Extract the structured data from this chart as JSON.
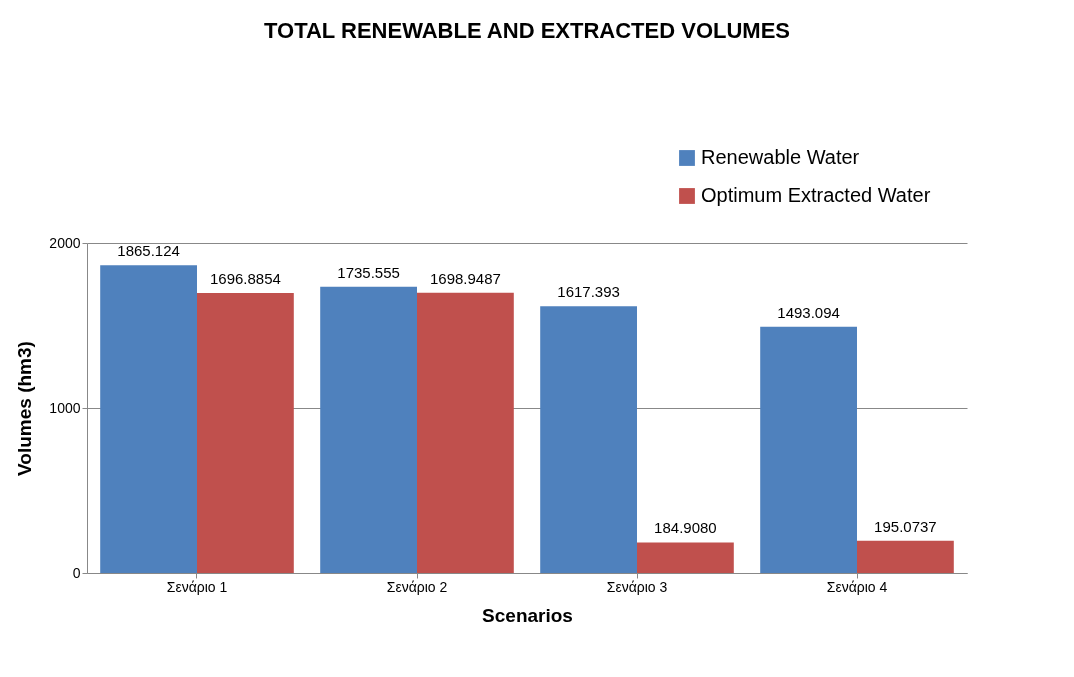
{
  "chart_data": {
    "type": "bar",
    "title": "TOTAL RENEWABLE AND EXTRACTED VOLUMES",
    "xlabel": "Scenarios",
    "ylabel": "Volumes (hm3)",
    "categories": [
      "Σενάριο 1",
      "Σενάριο 2",
      "Σενάριο 3",
      "Σενάριο 4"
    ],
    "series": [
      {
        "name": "Renewable Water",
        "color": "#4f81bd",
        "values": [
          1865.124,
          1735.555,
          1617.393,
          1493.094
        ],
        "value_labels": [
          "1865.124",
          "1735.555",
          "1617.393",
          "1493.094"
        ]
      },
      {
        "name": "Optimum Extracted Water",
        "color": "#c0504d",
        "values": [
          1696.8854,
          1698.9487,
          184.908,
          195.0737
        ],
        "value_labels": [
          "1696.8854",
          "1698.9487",
          "184.9080",
          "195.0737"
        ]
      }
    ],
    "ylim": [
      0,
      2000
    ],
    "yticks": [
      0,
      1000,
      2000
    ],
    "grid": "y",
    "legend": "top right"
  }
}
